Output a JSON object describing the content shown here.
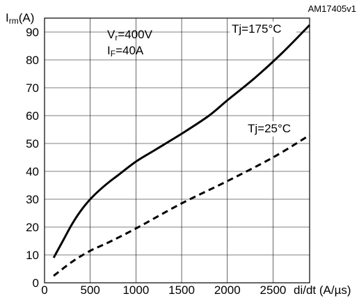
{
  "figure_ref": "AM17405v1",
  "chart_data": {
    "type": "line",
    "ylabel": {
      "main": "I",
      "sub": "rm",
      "unit": "(A)"
    },
    "xlabel": "di/dt (A/µs)",
    "xlim": [
      0,
      2900
    ],
    "ylim": [
      0,
      95
    ],
    "x_ticks": [
      0,
      500,
      1000,
      1500,
      2000,
      2500
    ],
    "y_ticks": [
      0,
      10,
      20,
      30,
      40,
      50,
      60,
      70,
      80,
      90
    ],
    "grid": true,
    "conditions": [
      {
        "main": "V",
        "sub": "r",
        "value": "=400V"
      },
      {
        "main": "I",
        "sub": "F",
        "value": "=40A"
      }
    ],
    "series": [
      {
        "name": "Tj=175°C",
        "style": "solid",
        "x": [
          100,
          200,
          300,
          400,
          500,
          600,
          700,
          800,
          1000,
          1200,
          1500,
          1800,
          2000,
          2300,
          2600,
          2900
        ],
        "y": [
          9,
          15,
          21,
          26,
          30,
          33.2,
          36,
          38.5,
          43.5,
          47.5,
          53.5,
          60,
          65.5,
          73.5,
          82.5,
          92.5
        ]
      },
      {
        "name": "Tj=25°C",
        "style": "dashed",
        "x": [
          100,
          300,
          500,
          700,
          1000,
          1500,
          2000,
          2500,
          2900
        ],
        "y": [
          2.5,
          7.5,
          11.5,
          14.5,
          19.5,
          28.5,
          36.5,
          45,
          53
        ]
      }
    ],
    "colors": {
      "line": "#000000",
      "grid": "#000000"
    }
  }
}
